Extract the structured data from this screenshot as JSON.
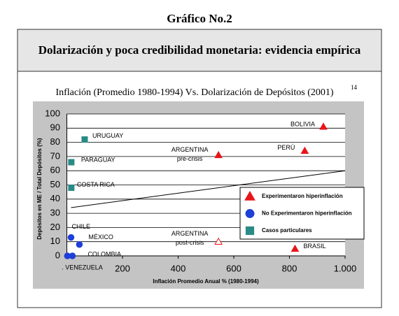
{
  "heading": "Gráfico No.2",
  "chart_data": {
    "type": "scatter",
    "title": "Dolarización y poca credibilidad monetaria: evidencia empírica",
    "subtitle": "Inflación (Promedio 1980-1994) Vs. Dolarización de Depósitos (2001)",
    "subtitle_note": "14",
    "x_label": "Inflación Promedio Anual % (1980-1994)",
    "y_label": "Depósitos en ME / Total Depósitos (%)",
    "xlim": [
      0,
      1000
    ],
    "ylim": [
      0,
      100
    ],
    "xticks": [
      200,
      400,
      600,
      800,
      {
        "value": 1000,
        "label": "1.000"
      }
    ],
    "yticks": [
      0,
      10,
      20,
      30,
      40,
      50,
      60,
      70,
      80,
      90,
      100
    ],
    "grid": true,
    "series": [
      {
        "name": "Experimentaron hiperinflación",
        "color": "#e8141a",
        "marker": "triangle",
        "x": [
          922,
          855,
          545,
          820,
          545
        ],
        "values": [
          91,
          74,
          71,
          5,
          10
        ],
        "hollow": [
          false,
          false,
          false,
          false,
          true
        ],
        "labels": [
          [
            "BOLIVIA"
          ],
          [
            "PERÚ"
          ],
          [
            "ARGENTINA",
            "pre-crisis"
          ],
          [
            "BRASIL"
          ],
          [
            "ARGENTINA",
            "post-crisis"
          ]
        ]
      },
      {
        "name": "No Experimentaron hiperinflación",
        "color": "#1f3fd8",
        "marker": "circle",
        "x": [
          15,
          45,
          20,
          2
        ],
        "values": [
          13,
          8,
          0,
          0
        ],
        "labels": [
          [
            "CHILE"
          ],
          [
            "MÉXICO"
          ],
          [
            "COLOMBIA"
          ],
          [
            ". VENEZUELA"
          ]
        ]
      },
      {
        "name": "Casos particulares",
        "color": "#2a8a86",
        "marker": "square",
        "x": [
          64,
          16,
          16
        ],
        "values": [
          82,
          66,
          48
        ],
        "labels": [
          [
            "URUGUAY"
          ],
          [
            "PARAGUAY"
          ],
          [
            "COSTA RICA"
          ]
        ]
      }
    ],
    "trend_line": {
      "x": [
        15,
        1000
      ],
      "values": [
        34,
        60
      ]
    }
  }
}
